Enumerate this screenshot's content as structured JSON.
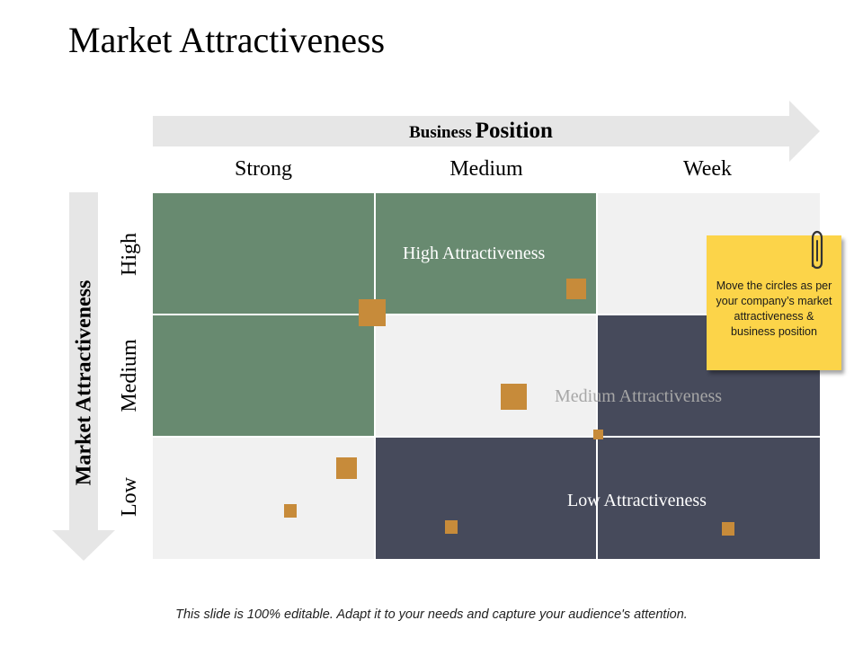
{
  "title": "Market Attractiveness",
  "business_position": {
    "label_prefix": "Business",
    "label_main": "Position",
    "columns": [
      "Strong",
      "Medium",
      "Week"
    ]
  },
  "market_attractiveness": {
    "label": "Market Attractiveness",
    "rows": [
      "High",
      "Medium",
      "Low"
    ]
  },
  "zones": {
    "high": "High Attractiveness",
    "medium": "Medium Attractiveness",
    "low": "Low Attractiveness"
  },
  "colors": {
    "high": "#688a70",
    "medium": "#f1f1f1",
    "low": "#464a5b",
    "marker": "#c78b3a",
    "note": "#fcd449",
    "arrow": "#e6e6e6"
  },
  "sticky_note": {
    "text": "Move the circles as per your company’s market attractiveness & business position"
  },
  "footer": "This slide is 100% editable. Adapt it to your needs and capture your audience's attention."
}
